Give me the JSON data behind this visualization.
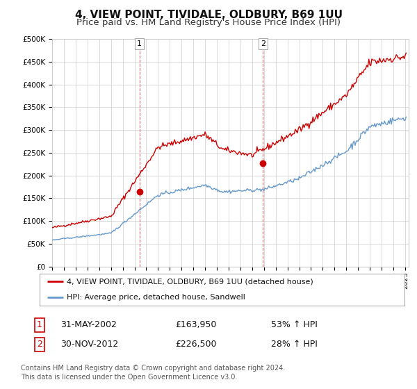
{
  "title": "4, VIEW POINT, TIVIDALE, OLDBURY, B69 1UU",
  "subtitle": "Price paid vs. HM Land Registry's House Price Index (HPI)",
  "ylim": [
    0,
    500000
  ],
  "yticks": [
    0,
    50000,
    100000,
    150000,
    200000,
    250000,
    300000,
    350000,
    400000,
    450000,
    500000
  ],
  "ytick_labels": [
    "£0",
    "£50K",
    "£100K",
    "£150K",
    "£200K",
    "£250K",
    "£300K",
    "£350K",
    "£400K",
    "£450K",
    "£500K"
  ],
  "red_line_color": "#cc0000",
  "blue_line_color": "#6699cc",
  "background_color": "#ffffff",
  "plot_bg_color": "#ffffff",
  "grid_color": "#cccccc",
  "sale1_year": 2002.42,
  "sale1_price": 163950,
  "sale2_year": 2012.92,
  "sale2_price": 226500,
  "legend_entry1": "4, VIEW POINT, TIVIDALE, OLDBURY, B69 1UU (detached house)",
  "legend_entry2": "HPI: Average price, detached house, Sandwell",
  "table_row1": [
    "1",
    "31-MAY-2002",
    "£163,950",
    "53% ↑ HPI"
  ],
  "table_row2": [
    "2",
    "30-NOV-2012",
    "£226,500",
    "28% ↑ HPI"
  ],
  "footer": "Contains HM Land Registry data © Crown copyright and database right 2024.\nThis data is licensed under the Open Government Licence v3.0.",
  "title_fontsize": 11,
  "subtitle_fontsize": 9.5
}
